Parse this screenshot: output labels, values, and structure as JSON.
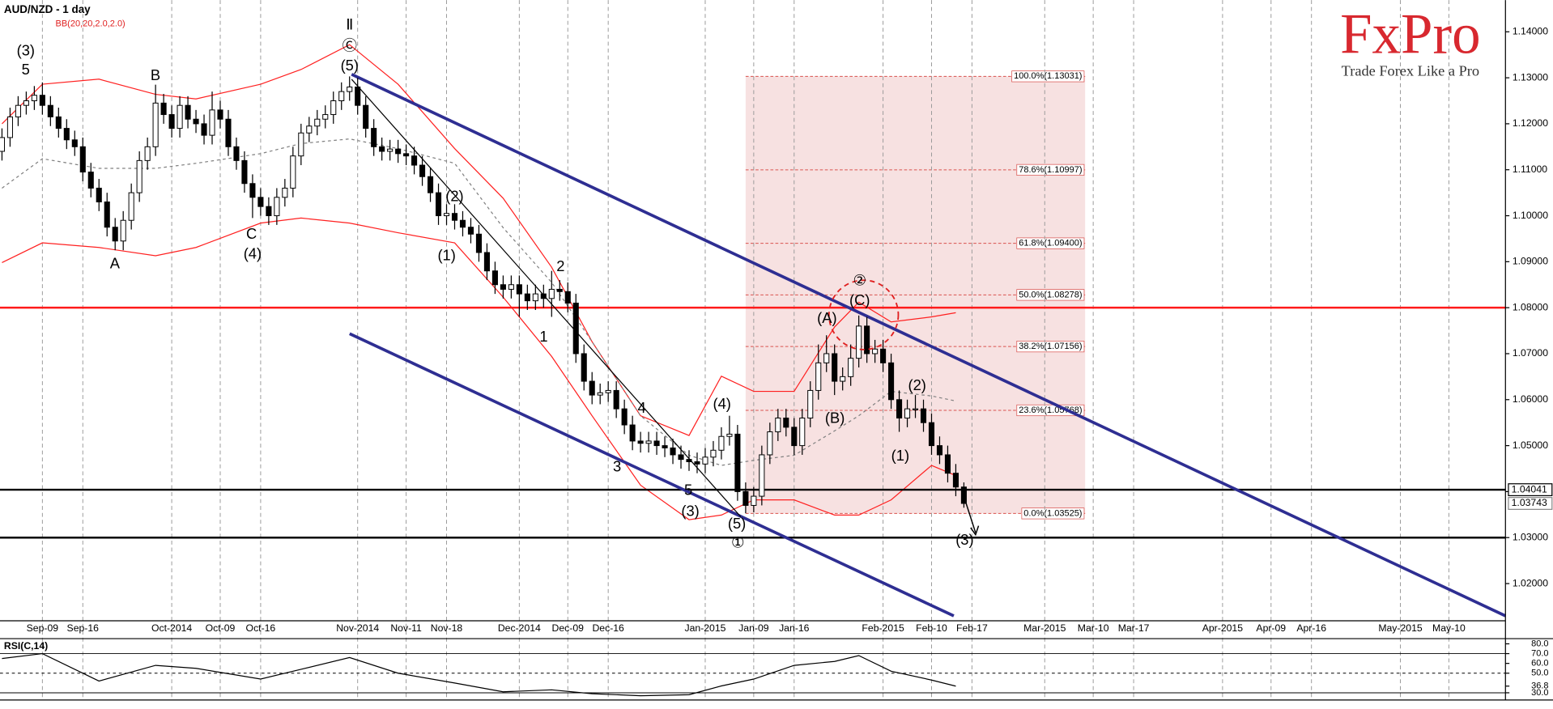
{
  "brand": {
    "name": "FxPro",
    "tagline": "Trade Forex Like a Pro"
  },
  "chart_data": {
    "type": "candlestick",
    "title": "AUD/NZD - 1 day",
    "indicator": "BB(20,20,2.0,2.0)",
    "xlim": [
      "2014-09-02",
      "2015-05-20"
    ],
    "ylim": [
      1.0119,
      1.1469
    ],
    "yticks": [
      {
        "value": 1.14,
        "label": "1.14000"
      },
      {
        "value": 1.13,
        "label": "1.13000"
      },
      {
        "value": 1.12,
        "label": "1.12000"
      },
      {
        "value": 1.11,
        "label": "1.11000"
      },
      {
        "value": 1.1,
        "label": "1.10000"
      },
      {
        "value": 1.09,
        "label": "1.09000"
      },
      {
        "value": 1.08,
        "label": "1.08000"
      },
      {
        "value": 1.07,
        "label": "1.07000"
      },
      {
        "value": 1.06,
        "label": "1.06000"
      },
      {
        "value": 1.05,
        "label": "1.05000"
      },
      {
        "value": 1.04,
        "label": "1.04000"
      },
      {
        "value": 1.03,
        "label": "1.03000"
      },
      {
        "value": 1.02,
        "label": "1.02000"
      }
    ],
    "xticks": [
      {
        "value": "2014-09-09",
        "label": "Sep-09"
      },
      {
        "value": "2014-09-16",
        "label": "Sep-16"
      },
      {
        "value": "2014-10-01",
        "label": "Oct-2014"
      },
      {
        "value": "2014-10-09",
        "label": "Oct-09"
      },
      {
        "value": "2014-10-16",
        "label": "Oct-16"
      },
      {
        "value": "2014-11-03",
        "label": "Nov-2014"
      },
      {
        "value": "2014-11-11",
        "label": "Nov-11"
      },
      {
        "value": "2014-11-18",
        "label": "Nov-18"
      },
      {
        "value": "2014-12-01",
        "label": "Dec-2014"
      },
      {
        "value": "2014-12-09",
        "label": "Dec-09"
      },
      {
        "value": "2014-12-16",
        "label": "Dec-16"
      },
      {
        "value": "2015-01-01",
        "label": "Jan-2015"
      },
      {
        "value": "2015-01-09",
        "label": "Jan-09"
      },
      {
        "value": "2015-01-16",
        "label": "Jan-16"
      },
      {
        "value": "2015-02-02",
        "label": "Feb-2015"
      },
      {
        "value": "2015-02-10",
        "label": "Feb-10"
      },
      {
        "value": "2015-02-17",
        "label": "Feb-17"
      },
      {
        "value": "2015-03-02",
        "label": "Mar-2015"
      },
      {
        "value": "2015-03-10",
        "label": "Mar-10"
      },
      {
        "value": "2015-03-17",
        "label": "Mar-17"
      },
      {
        "value": "2015-04-01",
        "label": "Apr-2015"
      },
      {
        "value": "2015-04-09",
        "label": "Apr-09"
      },
      {
        "value": "2015-04-16",
        "label": "Apr-16"
      },
      {
        "value": "2015-05-01",
        "label": "May-2015"
      },
      {
        "value": "2015-05-10",
        "label": "May-10"
      }
    ],
    "grid": true,
    "x": [
      "2014-09-02",
      "2014-09-03",
      "2014-09-04",
      "2014-09-05",
      "2014-09-08",
      "2014-09-09",
      "2014-09-10",
      "2014-09-11",
      "2014-09-12",
      "2014-09-15",
      "2014-09-16",
      "2014-09-17",
      "2014-09-18",
      "2014-09-19",
      "2014-09-22",
      "2014-09-23",
      "2014-09-24",
      "2014-09-25",
      "2014-09-26",
      "2014-09-29",
      "2014-09-30",
      "2014-10-01",
      "2014-10-02",
      "2014-10-03",
      "2014-10-06",
      "2014-10-07",
      "2014-10-08",
      "2014-10-09",
      "2014-10-10",
      "2014-10-13",
      "2014-10-14",
      "2014-10-15",
      "2014-10-16",
      "2014-10-17",
      "2014-10-20",
      "2014-10-21",
      "2014-10-22",
      "2014-10-23",
      "2014-10-24",
      "2014-10-27",
      "2014-10-28",
      "2014-10-29",
      "2014-10-30",
      "2014-10-31",
      "2014-11-03",
      "2014-11-04",
      "2014-11-05",
      "2014-11-06",
      "2014-11-07",
      "2014-11-10",
      "2014-11-11",
      "2014-11-12",
      "2014-11-13",
      "2014-11-14",
      "2014-11-17",
      "2014-11-18",
      "2014-11-19",
      "2014-11-20",
      "2014-11-21",
      "2014-11-24",
      "2014-11-25",
      "2014-11-26",
      "2014-11-27",
      "2014-11-28",
      "2014-12-01",
      "2014-12-02",
      "2014-12-03",
      "2014-12-04",
      "2014-12-05",
      "2014-12-08",
      "2014-12-09",
      "2014-12-10",
      "2014-12-11",
      "2014-12-12",
      "2014-12-15",
      "2014-12-16",
      "2014-12-17",
      "2014-12-18",
      "2014-12-19",
      "2014-12-22",
      "2014-12-23",
      "2014-12-24",
      "2014-12-25",
      "2014-12-26",
      "2014-12-29",
      "2014-12-30",
      "2014-12-31",
      "2015-01-01",
      "2015-01-02",
      "2015-01-05",
      "2015-01-06",
      "2015-01-07",
      "2015-01-08",
      "2015-01-09",
      "2015-01-12",
      "2015-01-13",
      "2015-01-14",
      "2015-01-15",
      "2015-01-16",
      "2015-01-19",
      "2015-01-20",
      "2015-01-21",
      "2015-01-22",
      "2015-01-23",
      "2015-01-26",
      "2015-01-27",
      "2015-01-28",
      "2015-01-29",
      "2015-01-30",
      "2015-02-02",
      "2015-02-03",
      "2015-02-04",
      "2015-02-05",
      "2015-02-06",
      "2015-02-09",
      "2015-02-10",
      "2015-02-11",
      "2015-02-12",
      "2015-02-13",
      "2015-02-16"
    ],
    "ohlc": [
      [
        1.114,
        1.119,
        1.112,
        1.117
      ],
      [
        1.117,
        1.1235,
        1.115,
        1.1215
      ],
      [
        1.1215,
        1.126,
        1.1195,
        1.124
      ],
      [
        1.124,
        1.127,
        1.122,
        1.125
      ],
      [
        1.125,
        1.1282,
        1.123,
        1.1262
      ],
      [
        1.1262,
        1.129,
        1.122,
        1.124
      ],
      [
        1.124,
        1.126,
        1.1195,
        1.1215
      ],
      [
        1.1215,
        1.1235,
        1.117,
        1.119
      ],
      [
        1.119,
        1.121,
        1.1145,
        1.1165
      ],
      [
        1.1165,
        1.1185,
        1.113,
        1.115
      ],
      [
        1.115,
        1.117,
        1.1075,
        1.1095
      ],
      [
        1.1095,
        1.1115,
        1.104,
        1.106
      ],
      [
        1.106,
        1.108,
        1.101,
        1.103
      ],
      [
        1.103,
        1.105,
        1.0955,
        1.0975
      ],
      [
        1.0975,
        1.0995,
        1.0925,
        1.0945
      ],
      [
        1.0945,
        1.101,
        1.0925,
        1.099
      ],
      [
        1.099,
        1.107,
        1.097,
        1.105
      ],
      [
        1.105,
        1.114,
        1.103,
        1.112
      ],
      [
        1.112,
        1.117,
        1.11,
        1.115
      ],
      [
        1.115,
        1.1285,
        1.113,
        1.1245
      ],
      [
        1.1245,
        1.1265,
        1.12,
        1.122
      ],
      [
        1.122,
        1.124,
        1.117,
        1.119
      ],
      [
        1.119,
        1.126,
        1.117,
        1.124
      ],
      [
        1.124,
        1.126,
        1.119,
        1.121
      ],
      [
        1.121,
        1.123,
        1.118,
        1.12
      ],
      [
        1.12,
        1.122,
        1.1155,
        1.1175
      ],
      [
        1.1175,
        1.127,
        1.1155,
        1.123
      ],
      [
        1.123,
        1.125,
        1.119,
        1.121
      ],
      [
        1.121,
        1.123,
        1.113,
        1.115
      ],
      [
        1.115,
        1.117,
        1.11,
        1.112
      ],
      [
        1.112,
        1.114,
        1.105,
        1.107
      ],
      [
        1.107,
        1.109,
        1.0995,
        1.104
      ],
      [
        1.104,
        1.106,
        1.1,
        1.102
      ],
      [
        1.102,
        1.104,
        1.098,
        1.1
      ],
      [
        1.1,
        1.106,
        1.098,
        1.104
      ],
      [
        1.104,
        1.108,
        1.102,
        1.106
      ],
      [
        1.106,
        1.115,
        1.104,
        1.113
      ],
      [
        1.113,
        1.12,
        1.111,
        1.118
      ],
      [
        1.118,
        1.1215,
        1.116,
        1.1195
      ],
      [
        1.1195,
        1.123,
        1.1175,
        1.121
      ],
      [
        1.121,
        1.124,
        1.119,
        1.122
      ],
      [
        1.122,
        1.127,
        1.12,
        1.125
      ],
      [
        1.125,
        1.129,
        1.123,
        1.127
      ],
      [
        1.127,
        1.1303,
        1.125,
        1.128
      ],
      [
        1.128,
        1.13,
        1.122,
        1.124
      ],
      [
        1.124,
        1.126,
        1.117,
        1.119
      ],
      [
        1.119,
        1.121,
        1.113,
        1.115
      ],
      [
        1.115,
        1.117,
        1.112,
        1.114
      ],
      [
        1.114,
        1.1165,
        1.112,
        1.1145
      ],
      [
        1.1145,
        1.1165,
        1.1115,
        1.1135
      ],
      [
        1.1135,
        1.1155,
        1.111,
        1.113
      ],
      [
        1.113,
        1.115,
        1.109,
        1.111
      ],
      [
        1.111,
        1.113,
        1.1065,
        1.1085
      ],
      [
        1.1085,
        1.1105,
        1.103,
        1.105
      ],
      [
        1.105,
        1.107,
        1.098,
        1.1
      ],
      [
        1.1,
        1.1025,
        1.098,
        1.1005
      ],
      [
        1.1005,
        1.1025,
        1.097,
        1.099
      ],
      [
        1.099,
        1.101,
        1.0955,
        1.0975
      ],
      [
        1.0975,
        1.0995,
        1.094,
        1.096
      ],
      [
        1.096,
        1.098,
        1.09,
        1.092
      ],
      [
        1.092,
        1.094,
        1.086,
        1.088
      ],
      [
        1.088,
        1.09,
        1.083,
        1.085
      ],
      [
        1.085,
        1.087,
        1.082,
        1.084
      ],
      [
        1.084,
        1.087,
        1.082,
        1.085
      ],
      [
        1.085,
        1.087,
        1.078,
        1.083
      ],
      [
        1.083,
        1.085,
        1.0795,
        1.0815
      ],
      [
        1.0815,
        1.085,
        1.0795,
        1.083
      ],
      [
        1.083,
        1.085,
        1.08,
        1.082
      ],
      [
        1.082,
        1.088,
        1.078,
        1.084
      ],
      [
        1.084,
        1.086,
        1.0815,
        1.0835
      ],
      [
        1.0835,
        1.0855,
        1.079,
        1.081
      ],
      [
        1.081,
        1.083,
        1.068,
        1.07
      ],
      [
        1.07,
        1.072,
        1.062,
        1.064
      ],
      [
        1.064,
        1.066,
        1.059,
        1.061
      ],
      [
        1.061,
        1.0635,
        1.059,
        1.0615
      ],
      [
        1.0615,
        1.064,
        1.0595,
        1.062
      ],
      [
        1.062,
        1.064,
        1.056,
        1.058
      ],
      [
        1.058,
        1.06,
        1.0525,
        1.0545
      ],
      [
        1.0545,
        1.0565,
        1.049,
        1.051
      ],
      [
        1.051,
        1.053,
        1.0485,
        1.0505
      ],
      [
        1.0505,
        1.053,
        1.0485,
        1.051
      ],
      [
        1.051,
        1.053,
        1.048,
        1.05
      ],
      [
        1.05,
        1.052,
        1.0475,
        1.0495
      ],
      [
        1.0495,
        1.0515,
        1.046,
        1.048
      ],
      [
        1.048,
        1.05,
        1.045,
        1.047
      ],
      [
        1.047,
        1.049,
        1.0445,
        1.0465
      ],
      [
        1.0465,
        1.0485,
        1.044,
        1.046
      ],
      [
        1.046,
        1.0495,
        1.044,
        1.0475
      ],
      [
        1.0475,
        1.051,
        1.0455,
        1.049
      ],
      [
        1.049,
        1.054,
        1.047,
        1.052
      ],
      [
        1.052,
        1.0565,
        1.05,
        1.0525
      ],
      [
        1.0525,
        1.0545,
        1.038,
        1.04
      ],
      [
        1.04,
        1.042,
        1.0353,
        1.037
      ],
      [
        1.037,
        1.041,
        1.0355,
        1.039
      ],
      [
        1.039,
        1.05,
        1.037,
        1.048
      ],
      [
        1.048,
        1.055,
        1.046,
        1.053
      ],
      [
        1.053,
        1.058,
        1.051,
        1.056
      ],
      [
        1.056,
        1.058,
        1.052,
        1.054
      ],
      [
        1.054,
        1.056,
        1.048,
        1.05
      ],
      [
        1.05,
        1.058,
        1.048,
        1.056
      ],
      [
        1.056,
        1.064,
        1.054,
        1.062
      ],
      [
        1.062,
        1.072,
        1.06,
        1.068
      ],
      [
        1.068,
        1.074,
        1.066,
        1.07
      ],
      [
        1.07,
        1.072,
        1.061,
        1.064
      ],
      [
        1.064,
        1.067,
        1.062,
        1.065
      ],
      [
        1.065,
        1.072,
        1.063,
        1.069
      ],
      [
        1.069,
        1.0783,
        1.067,
        1.076
      ],
      [
        1.076,
        1.078,
        1.068,
        1.07
      ],
      [
        1.07,
        1.073,
        1.068,
        1.071
      ],
      [
        1.071,
        1.073,
        1.066,
        1.068
      ],
      [
        1.068,
        1.07,
        1.058,
        1.06
      ],
      [
        1.06,
        1.062,
        1.053,
        1.056
      ],
      [
        1.056,
        1.06,
        1.054,
        1.058
      ],
      [
        1.058,
        1.061,
        1.056,
        1.058
      ],
      [
        1.058,
        1.06,
        1.053,
        1.055
      ],
      [
        1.055,
        1.057,
        1.048,
        1.05
      ],
      [
        1.05,
        1.052,
        1.046,
        1.048
      ],
      [
        1.048,
        1.05,
        1.042,
        1.044
      ],
      [
        1.044,
        1.046,
        1.039,
        1.041
      ],
      [
        1.041,
        1.042,
        1.0365,
        1.03743
      ]
    ],
    "up_color": "#ffffff",
    "down_color": "#000000",
    "bands": {
      "color": "#ff2020",
      "middle_color": "#808080",
      "x": [
        "2014-09-02",
        "2014-09-09",
        "2014-09-18",
        "2014-09-29",
        "2014-10-06",
        "2014-10-16",
        "2014-10-23",
        "2014-10-31",
        "2014-11-10",
        "2014-11-19",
        "2014-11-27",
        "2014-12-05",
        "2014-12-12",
        "2014-12-22",
        "2014-12-30",
        "2015-01-05",
        "2015-01-09",
        "2015-01-16",
        "2015-01-23",
        "2015-01-28",
        "2015-02-03",
        "2015-02-10",
        "2015-02-13"
      ],
      "upper": [
        1.12,
        1.1286,
        1.1297,
        1.1264,
        1.1254,
        1.1286,
        1.1318,
        1.1372,
        1.1286,
        1.1146,
        1.1038,
        1.0888,
        1.0726,
        1.0565,
        1.0522,
        1.0651,
        1.0618,
        1.0618,
        1.0758,
        1.0812,
        1.0769,
        1.078,
        1.0789
      ],
      "middle": [
        1.106,
        1.1124,
        1.1103,
        1.1103,
        1.1114,
        1.1135,
        1.1157,
        1.1167,
        1.1146,
        1.1114,
        1.0974,
        1.0855,
        1.0726,
        1.0565,
        1.0479,
        1.0457,
        1.0468,
        1.0479,
        1.0532,
        1.0565,
        1.0618,
        1.0608,
        1.0597
      ],
      "lower": [
        1.0898,
        1.0941,
        1.0931,
        1.0913,
        1.0931,
        1.0984,
        1.0995,
        1.0984,
        1.0963,
        1.0941,
        1.0823,
        1.0694,
        1.0565,
        1.0414,
        1.0339,
        1.0349,
        1.0382,
        1.0382,
        1.0349,
        1.0349,
        1.0382,
        1.0457,
        1.0435
      ]
    },
    "hlines": [
      {
        "value": 1.08,
        "color": "#ff1a1a"
      },
      {
        "value": 1.04041,
        "color": "#000000"
      },
      {
        "value": 1.03,
        "color": "#000000"
      }
    ],
    "price_labels": [
      {
        "value": 1.04041,
        "color": "#000000"
      },
      {
        "value": 1.03743,
        "color": "#888888"
      }
    ],
    "fib": {
      "from": "2015-01-08",
      "to": "2015-03-09",
      "color": "#d9534f",
      "fill": "#f7e1e1",
      "levels": [
        {
          "value": 1.13031,
          "label": "100.0%(1.13031)"
        },
        {
          "value": 1.10997,
          "label": "78.6%(1.10997)"
        },
        {
          "value": 1.094,
          "label": "61.8%(1.09400)"
        },
        {
          "value": 1.08278,
          "label": "50.0%(1.08278)"
        },
        {
          "value": 1.07156,
          "label": "38.2%(1.07156)"
        },
        {
          "value": 1.05768,
          "label": "23.6%(1.05768)"
        },
        {
          "value": 1.03525,
          "label": "0.0%(1.03525)"
        }
      ]
    },
    "annotations": [
      "(3)",
      "5",
      "B",
      "A",
      "C",
      "(4)",
      "Ⅱ",
      "Ⓒ",
      "(5)",
      "(2)",
      "(1)",
      "2",
      "1",
      "4",
      "3",
      "5",
      "(3)",
      "(4)",
      "(5)",
      "①",
      "②",
      "(C)",
      "(A)",
      "(B)",
      "(2)",
      "(1)",
      "(3)"
    ],
    "rsi": {
      "title": "RSI(C,14)",
      "color": "#000000",
      "ylim": [
        22.6,
        85.3
      ],
      "yticks": [
        {
          "value": 80,
          "label": "80.0"
        },
        {
          "value": 70,
          "label": "70.0"
        },
        {
          "value": 60,
          "label": "60.0"
        },
        {
          "value": 50,
          "label": "50.0"
        },
        36.8,
        {
          "value": 30,
          "label": "30.0"
        }
      ],
      "lines": [
        70,
        50,
        30
      ],
      "x": [
        "2014-09-02",
        "2014-09-09",
        "2014-09-18",
        "2014-09-29",
        "2014-10-06",
        "2014-10-16",
        "2014-10-23",
        "2014-10-31",
        "2014-11-10",
        "2014-11-19",
        "2014-11-27",
        "2014-12-05",
        "2014-12-12",
        "2014-12-22",
        "2014-12-30",
        "2015-01-05",
        "2015-01-09",
        "2015-01-16",
        "2015-01-23",
        "2015-01-28",
        "2015-02-03",
        "2015-02-10",
        "2015-02-13"
      ],
      "values": [
        65,
        70,
        42,
        58,
        55,
        44,
        54,
        66,
        50,
        40,
        31,
        33,
        29,
        27,
        28,
        37,
        44,
        58,
        62,
        68,
        52,
        43,
        36.8
      ]
    }
  }
}
